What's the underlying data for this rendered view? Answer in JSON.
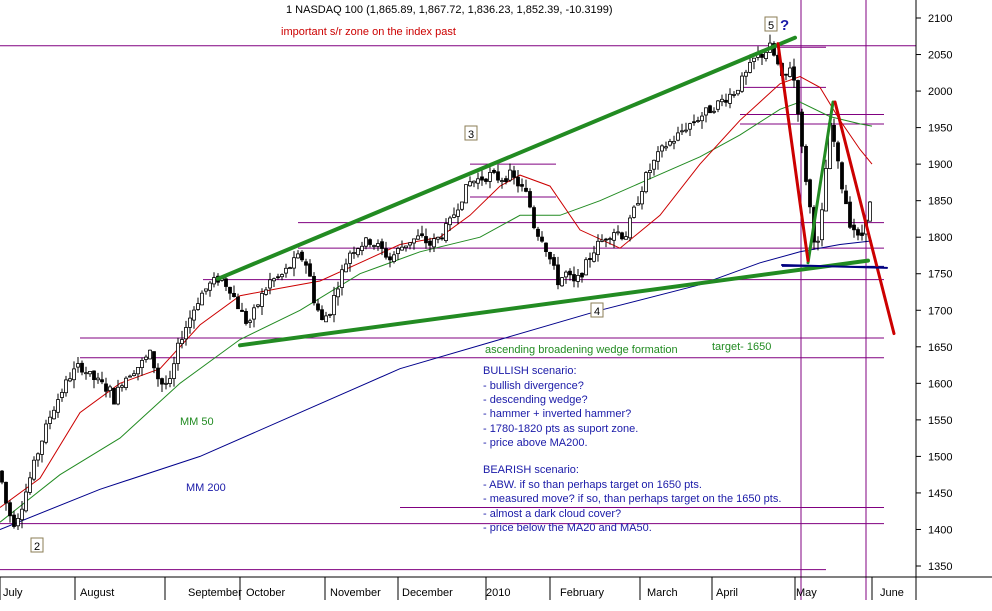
{
  "chart_data": {
    "type": "candlestick",
    "title": "1 NASDAQ 100 (1,865.89, 1,867.72, 1,836.23, 1,852.39, -10.3199)",
    "ylim": [
      1330,
      2120
    ],
    "y_ticks": [
      1350,
      1400,
      1450,
      1500,
      1550,
      1600,
      1650,
      1700,
      1750,
      1800,
      1850,
      1900,
      1950,
      2000,
      2050,
      2100
    ],
    "x_labels": [
      "July",
      "August",
      "September",
      "October",
      "November",
      "December",
      "2010",
      "February",
      "March",
      "April",
      "May",
      "June"
    ],
    "grid": false,
    "price_path": [
      [
        0,
        1480
      ],
      [
        5,
        1440
      ],
      [
        10,
        1420
      ],
      [
        14,
        1410
      ],
      [
        20,
        1425
      ],
      [
        30,
        1470
      ],
      [
        40,
        1515
      ],
      [
        50,
        1555
      ],
      [
        60,
        1585
      ],
      [
        70,
        1610
      ],
      [
        80,
        1625
      ],
      [
        90,
        1610
      ],
      [
        100,
        1600
      ],
      [
        110,
        1590
      ],
      [
        115,
        1575
      ],
      [
        120,
        1600
      ],
      [
        130,
        1615
      ],
      [
        140,
        1625
      ],
      [
        150,
        1640
      ],
      [
        160,
        1600
      ],
      [
        170,
        1600
      ],
      [
        180,
        1660
      ],
      [
        190,
        1690
      ],
      [
        200,
        1720
      ],
      [
        210,
        1735
      ],
      [
        220,
        1745
      ],
      [
        230,
        1730
      ],
      [
        240,
        1700
      ],
      [
        248,
        1680
      ],
      [
        255,
        1700
      ],
      [
        262,
        1720
      ],
      [
        270,
        1740
      ],
      [
        280,
        1745
      ],
      [
        290,
        1760
      ],
      [
        300,
        1775
      ],
      [
        308,
        1760
      ],
      [
        314,
        1715
      ],
      [
        322,
        1685
      ],
      [
        330,
        1700
      ],
      [
        340,
        1745
      ],
      [
        350,
        1780
      ],
      [
        360,
        1790
      ],
      [
        370,
        1795
      ],
      [
        380,
        1785
      ],
      [
        390,
        1770
      ],
      [
        400,
        1785
      ],
      [
        410,
        1795
      ],
      [
        420,
        1800
      ],
      [
        430,
        1790
      ],
      [
        440,
        1800
      ],
      [
        450,
        1820
      ],
      [
        460,
        1850
      ],
      [
        470,
        1875
      ],
      [
        480,
        1880
      ],
      [
        490,
        1885
      ],
      [
        500,
        1880
      ],
      [
        510,
        1885
      ],
      [
        520,
        1870
      ],
      [
        528,
        1855
      ],
      [
        535,
        1810
      ],
      [
        542,
        1800
      ],
      [
        550,
        1770
      ],
      [
        558,
        1740
      ],
      [
        566,
        1750
      ],
      [
        575,
        1735
      ],
      [
        585,
        1760
      ],
      [
        595,
        1785
      ],
      [
        605,
        1800
      ],
      [
        615,
        1810
      ],
      [
        625,
        1800
      ],
      [
        635,
        1840
      ],
      [
        645,
        1880
      ],
      [
        655,
        1905
      ],
      [
        665,
        1925
      ],
      [
        675,
        1935
      ],
      [
        685,
        1950
      ],
      [
        695,
        1960
      ],
      [
        705,
        1970
      ],
      [
        715,
        1980
      ],
      [
        725,
        1990
      ],
      [
        735,
        2000
      ],
      [
        745,
        2020
      ],
      [
        755,
        2045
      ],
      [
        762,
        2050
      ],
      [
        770,
        2060
      ],
      [
        777,
        2040
      ],
      [
        783,
        2010
      ],
      [
        790,
        2035
      ],
      [
        796,
        2005
      ],
      [
        801,
        1930
      ],
      [
        806,
        1880
      ],
      [
        811,
        1830
      ],
      [
        816,
        1780
      ],
      [
        820,
        1800
      ],
      [
        825,
        1880
      ],
      [
        830,
        1950
      ],
      [
        835,
        1925
      ],
      [
        840,
        1880
      ],
      [
        845,
        1855
      ],
      [
        850,
        1820
      ],
      [
        855,
        1810
      ],
      [
        860,
        1790
      ],
      [
        866,
        1830
      ],
      [
        872,
        1852
      ]
    ],
    "moving_averages": [
      {
        "name": "MM 200",
        "color": "#00008b",
        "points": [
          [
            0,
            1400
          ],
          [
            100,
            1455
          ],
          [
            200,
            1500
          ],
          [
            300,
            1560
          ],
          [
            400,
            1620
          ],
          [
            500,
            1660
          ],
          [
            600,
            1700
          ],
          [
            700,
            1735
          ],
          [
            760,
            1765
          ],
          [
            800,
            1780
          ],
          [
            840,
            1790
          ],
          [
            872,
            1795
          ]
        ]
      },
      {
        "name": "MM 50",
        "color": "#228b22",
        "points": [
          [
            0,
            1410
          ],
          [
            60,
            1475
          ],
          [
            120,
            1525
          ],
          [
            180,
            1600
          ],
          [
            240,
            1660
          ],
          [
            300,
            1700
          ],
          [
            360,
            1750
          ],
          [
            420,
            1780
          ],
          [
            480,
            1800
          ],
          [
            520,
            1830
          ],
          [
            560,
            1830
          ],
          [
            600,
            1850
          ],
          [
            650,
            1880
          ],
          [
            700,
            1910
          ],
          [
            740,
            1940
          ],
          [
            780,
            1975
          ],
          [
            800,
            1985
          ],
          [
            830,
            1965
          ],
          [
            860,
            1955
          ],
          [
            872,
            1952
          ]
        ]
      },
      {
        "name": "MA20",
        "color": "#cc0000",
        "points": [
          [
            0,
            1430
          ],
          [
            40,
            1470
          ],
          [
            80,
            1560
          ],
          [
            120,
            1600
          ],
          [
            160,
            1620
          ],
          [
            200,
            1680
          ],
          [
            240,
            1720
          ],
          [
            280,
            1730
          ],
          [
            320,
            1740
          ],
          [
            360,
            1765
          ],
          [
            400,
            1790
          ],
          [
            440,
            1800
          ],
          [
            470,
            1830
          ],
          [
            500,
            1870
          ],
          [
            520,
            1885
          ],
          [
            550,
            1870
          ],
          [
            580,
            1810
          ],
          [
            620,
            1785
          ],
          [
            660,
            1830
          ],
          [
            700,
            1900
          ],
          [
            740,
            1960
          ],
          [
            780,
            2010
          ],
          [
            800,
            2020
          ],
          [
            820,
            2005
          ],
          [
            840,
            1960
          ],
          [
            860,
            1920
          ],
          [
            872,
            1900
          ]
        ]
      }
    ],
    "hlines": [
      {
        "value": 2062,
        "color": "#800080",
        "from": 0,
        "to": 992
      },
      {
        "value": 2060,
        "color": "#800080",
        "from": 768,
        "to": 826
      },
      {
        "value": 2005,
        "color": "#800080",
        "from": 740,
        "to": 826
      },
      {
        "value": 1968,
        "color": "#800080",
        "from": 740,
        "to": 884
      },
      {
        "value": 1955,
        "color": "#800080",
        "from": 740,
        "to": 884
      },
      {
        "value": 1900,
        "color": "#800080",
        "from": 470,
        "to": 556
      },
      {
        "value": 1855,
        "color": "#800080",
        "from": 470,
        "to": 556
      },
      {
        "value": 1820,
        "color": "#800080",
        "from": 298,
        "to": 884
      },
      {
        "value": 1785,
        "color": "#800080",
        "from": 298,
        "to": 884
      },
      {
        "value": 1760,
        "color": "#000080",
        "from": 782,
        "to": 884
      },
      {
        "value": 1742,
        "color": "#800080",
        "from": 203,
        "to": 884
      },
      {
        "value": 1662,
        "color": "#800080",
        "from": 80,
        "to": 884
      },
      {
        "value": 1635,
        "color": "#800080",
        "from": 80,
        "to": 884
      },
      {
        "value": 1430,
        "color": "#800080",
        "from": 400,
        "to": 884
      },
      {
        "value": 1408,
        "color": "#800080",
        "from": 0,
        "to": 884
      },
      {
        "value": 1345,
        "color": "#800080",
        "from": 0,
        "to": 826
      }
    ],
    "vlines": [
      {
        "x": 801,
        "color": "#800080"
      },
      {
        "x": 866,
        "color": "#800080"
      }
    ],
    "trendlines": [
      {
        "color": "#228b22",
        "width": 4,
        "from": [
          218,
          1743
        ],
        "to": [
          795,
          2073
        ]
      },
      {
        "color": "#228b22",
        "width": 4,
        "from": [
          240,
          1652
        ],
        "to": [
          868,
          1768
        ]
      },
      {
        "color": "#228b22",
        "width": 3,
        "from": [
          808,
          1765
        ],
        "to": [
          833,
          1985
        ]
      },
      {
        "color": "#cc0000",
        "width": 3,
        "from": [
          778,
          2065
        ],
        "to": [
          808,
          1768
        ]
      },
      {
        "color": "#cc0000",
        "width": 3,
        "from": [
          835,
          1985
        ],
        "to": [
          894,
          1668
        ]
      },
      {
        "color": "#000080",
        "width": 2,
        "from": [
          782,
          1762
        ],
        "to": [
          887,
          1758
        ]
      }
    ],
    "annotations": {
      "important_zone": "important s/r zone on the index past",
      "wave_labels": [
        "5",
        "3",
        "4",
        "2"
      ],
      "question_mark": "?",
      "wedge": "ascending broadening wedge formation",
      "target": "target- 1650",
      "mm50": "MM 50",
      "mm200": "MM 200",
      "bullish": [
        "BULLISH scenario:",
        "- bullish divergence?",
        "- descending wedge?",
        "- hammer + inverted hammer?",
        "- 1780-1820 pts as suport zone.",
        "- price above MA200."
      ],
      "bearish": [
        "BEARISH scenario:",
        "- ABW. if so than perhaps target on 1650 pts.",
        "- measured move? if so, than  perhaps target on the 1650 pts.",
        "- almost a dark cloud cover?",
        "- price below the MA20 and MA50."
      ]
    },
    "colors": {
      "annotation_blue": "#1a1aa8",
      "annotation_red": "#cc0000",
      "annotation_green": "#228b22",
      "candle": "#000000"
    }
  }
}
